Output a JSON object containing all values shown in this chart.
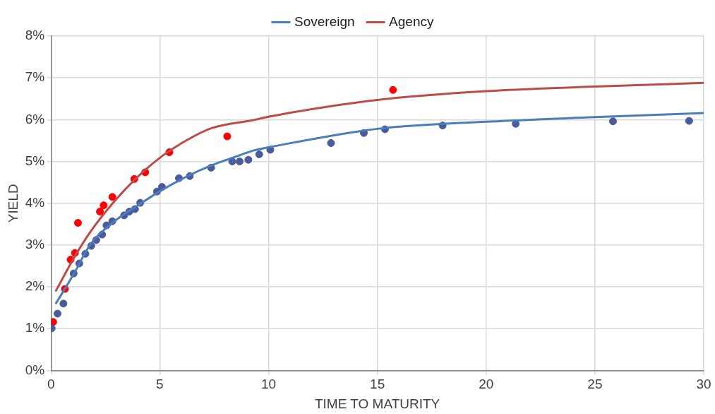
{
  "chart_data": {
    "type": "scatter",
    "xlabel": "TIME TO MATURITY",
    "ylabel": "YIELD",
    "xlim": [
      0,
      30
    ],
    "xticks": [
      0,
      5,
      10,
      15,
      20,
      25,
      30
    ],
    "ylim": [
      0,
      8
    ],
    "yticks": [
      {
        "value": 0,
        "label": "0%"
      },
      {
        "value": 1,
        "label": "1%"
      },
      {
        "value": 2,
        "label": "2%"
      },
      {
        "value": 3,
        "label": "3%"
      },
      {
        "value": 4,
        "label": "4%"
      },
      {
        "value": 5,
        "label": "5%"
      },
      {
        "value": 6,
        "label": "6%"
      },
      {
        "value": 7,
        "label": "7%"
      },
      {
        "value": 8,
        "label": "8%"
      }
    ],
    "grid": true,
    "legend": "top",
    "series": [
      {
        "color": "#4b5a9c",
        "marker": "circle",
        "x": [
          0.03,
          0.3,
          0.57,
          1.04,
          1.3,
          1.58,
          1.85,
          2.08,
          2.35,
          2.55,
          2.82,
          3.36,
          3.6,
          3.86,
          4.1,
          4.87,
          5.1,
          5.88,
          6.38,
          7.36,
          8.33,
          8.67,
          9.07,
          9.57,
          10.08,
          12.87,
          14.38,
          15.35,
          18.0,
          21.36,
          25.83,
          29.33
        ],
        "values": [
          1.01,
          1.36,
          1.6,
          2.32,
          2.56,
          2.79,
          2.98,
          3.12,
          3.25,
          3.47,
          3.57,
          3.71,
          3.8,
          3.86,
          4.01,
          4.28,
          4.39,
          4.6,
          4.65,
          4.85,
          5.0,
          5.0,
          5.04,
          5.17,
          5.28,
          5.44,
          5.68,
          5.77,
          5.86,
          5.9,
          5.96,
          5.97
        ]
      },
      {
        "color": "#ff0000",
        "marker": "circle",
        "x": [
          0.1,
          0.64,
          0.9,
          1.1,
          1.24,
          2.25,
          2.42,
          2.82,
          3.83,
          4.33,
          5.44,
          8.1,
          15.72
        ],
        "values": [
          1.16,
          1.95,
          2.65,
          2.81,
          3.53,
          3.8,
          3.95,
          4.15,
          4.58,
          4.74,
          5.22,
          5.6,
          6.71
        ]
      },
      {
        "type": "line",
        "name": "Sovereign",
        "color": "#4a7ebb",
        "marker": "none",
        "x": [
          0.21,
          1.07,
          1.8,
          2.92,
          4.03,
          4.98,
          6.28,
          7.39,
          8.52,
          9.3,
          10.31,
          15,
          20,
          25,
          30
        ],
        "values": [
          1.59,
          2.33,
          3.01,
          3.57,
          3.96,
          4.28,
          4.65,
          4.91,
          5.12,
          5.26,
          5.37,
          5.78,
          5.95,
          6.06,
          6.16
        ]
      },
      {
        "type": "line",
        "name": "Agency",
        "color": "#be4b48",
        "marker": "none",
        "x": [
          0.21,
          1.13,
          1.8,
          2.92,
          4.04,
          5.16,
          6.28,
          7.4,
          9.3,
          10,
          15,
          20,
          25,
          30
        ],
        "values": [
          1.89,
          2.76,
          3.31,
          4.05,
          4.66,
          5.15,
          5.52,
          5.8,
          5.99,
          6.07,
          6.47,
          6.68,
          6.79,
          6.88
        ]
      }
    ]
  }
}
